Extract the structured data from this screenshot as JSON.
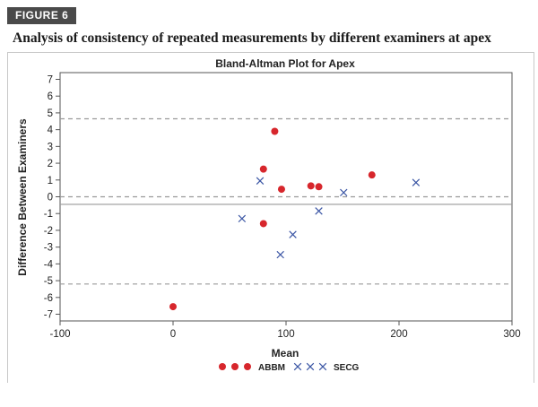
{
  "figure_label": "FIGURE 6",
  "figure_title": "Analysis of consistency of repeated measurements by different examiners at apex",
  "colors": {
    "abbm": "#d7262c",
    "secg": "#3a55a4",
    "badge_bg": "#4a4a4a",
    "ref_line": "#9a9a9a"
  },
  "chart_data": {
    "type": "scatter",
    "title": "Bland-Altman Plot for Apex",
    "xlabel": "Mean",
    "ylabel": "Difference Between Examiners",
    "xlim": [
      -100,
      300
    ],
    "ylim": [
      -7.4,
      7.4
    ],
    "x_ticks": [
      -100,
      0,
      100,
      200,
      300
    ],
    "x_tick_labels": [
      "-100",
      "0",
      "100",
      "200",
      "300"
    ],
    "y_ticks": [
      7,
      6,
      5,
      4,
      3,
      2,
      1,
      0,
      -1,
      -2,
      -3,
      -4,
      -5,
      -6,
      -7
    ],
    "y_tick_labels": [
      "7",
      "6",
      "5",
      "4",
      "3",
      "2",
      "1",
      "0",
      "-1",
      "-2",
      "-3",
      "-4",
      "-5",
      "-6",
      "-7"
    ],
    "reference_lines": [
      {
        "y": 4.65,
        "style": "dashed"
      },
      {
        "y": 0,
        "style": "dashed"
      },
      {
        "y": -0.45,
        "style": "solid"
      },
      {
        "y": -5.2,
        "style": "dashed"
      }
    ],
    "grid": false,
    "legend_position": "bottom",
    "series": [
      {
        "name": "ABBM",
        "marker": "circle",
        "points": [
          {
            "x": 90,
            "y": 3.9
          },
          {
            "x": 80,
            "y": 1.65
          },
          {
            "x": 96,
            "y": 0.45
          },
          {
            "x": 122,
            "y": 0.65
          },
          {
            "x": 129,
            "y": 0.6
          },
          {
            "x": 176,
            "y": 1.3
          },
          {
            "x": 80,
            "y": -1.6
          },
          {
            "x": 0,
            "y": -6.55
          }
        ]
      },
      {
        "name": "SECG",
        "marker": "x",
        "points": [
          {
            "x": 77,
            "y": 0.95
          },
          {
            "x": 151,
            "y": 0.25
          },
          {
            "x": 215,
            "y": 0.85
          },
          {
            "x": 129,
            "y": -0.85
          },
          {
            "x": 61,
            "y": -1.3
          },
          {
            "x": 106,
            "y": -2.25
          },
          {
            "x": 95,
            "y": -3.45
          }
        ]
      }
    ]
  }
}
